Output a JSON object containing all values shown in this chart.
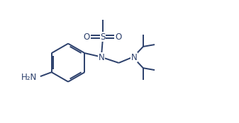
{
  "bg_color": "#ffffff",
  "line_color": "#2b3f6b",
  "line_width": 1.4,
  "font_size": 8.5,
  "fig_width": 3.37,
  "fig_height": 1.74,
  "dpi": 100,
  "xlim": [
    0,
    10
  ],
  "ylim": [
    0,
    5.2
  ]
}
